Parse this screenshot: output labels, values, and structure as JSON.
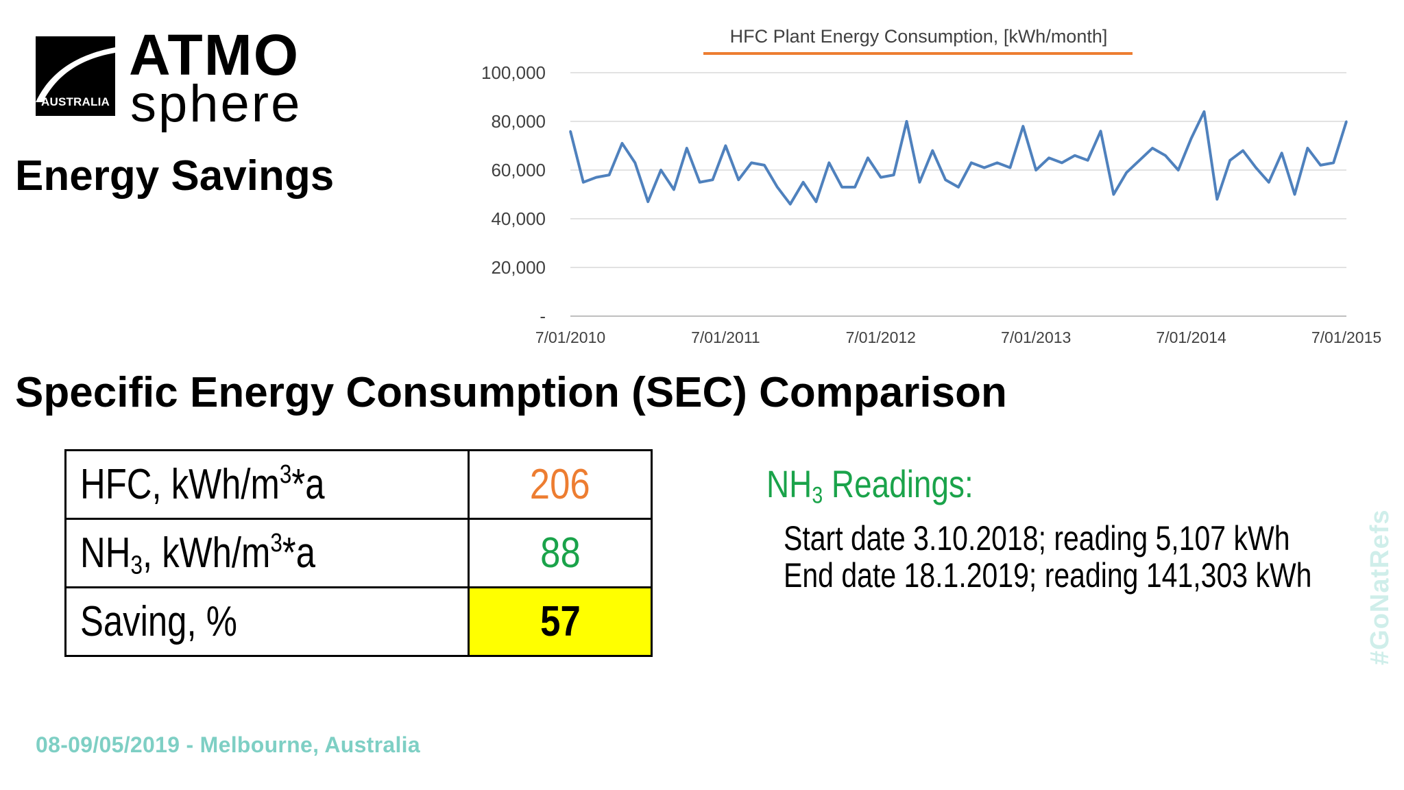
{
  "logo": {
    "top_text": "ATMO",
    "bottom_text": "sphere",
    "badge_text": "AUSTRALIA"
  },
  "headings": {
    "energy_savings": "Energy Savings",
    "sec_comparison": "Specific Energy Consumption (SEC) Comparison"
  },
  "chart_data": {
    "type": "line",
    "title": "HFC Plant Energy Consumption, [kWh/month]",
    "xlabel": "",
    "ylabel": "",
    "ylim": [
      0,
      100000
    ],
    "y_ticks": [
      "-",
      "20,000",
      "40,000",
      "60,000",
      "80,000",
      "100,000"
    ],
    "x_tick_labels": [
      "7/01/2010",
      "7/01/2011",
      "7/01/2012",
      "7/01/2013",
      "7/01/2014",
      "7/01/2015"
    ],
    "x_start": "7/01/2010",
    "x_end": "7/01/2015",
    "grid": true,
    "line_color": "#4f81bd",
    "title_underline_color": "#ed7d31",
    "values": [
      76000,
      55000,
      57000,
      58000,
      71000,
      63000,
      47000,
      60000,
      52000,
      69000,
      55000,
      56000,
      70000,
      56000,
      63000,
      62000,
      53000,
      46000,
      55000,
      47000,
      63000,
      53000,
      53000,
      65000,
      57000,
      58000,
      80000,
      55000,
      68000,
      56000,
      53000,
      63000,
      61000,
      63000,
      61000,
      78000,
      60000,
      65000,
      63000,
      66000,
      64000,
      76000,
      50000,
      59000,
      64000,
      69000,
      66000,
      60000,
      73000,
      84000,
      48000,
      64000,
      68000,
      61000,
      55000,
      67000,
      50000,
      69000,
      62000,
      63000,
      80000
    ]
  },
  "sec_table": {
    "rows": [
      {
        "label_main": "HFC, kWh/m",
        "label_sup": "3",
        "label_tail": "*a",
        "value": "206"
      },
      {
        "label_main": "NH",
        "label_sub": "3",
        "label_mid": ", kWh/m",
        "label_sup": "3",
        "label_tail": "*a",
        "value": "88"
      },
      {
        "label_main": "Saving, %",
        "value": "57"
      }
    ]
  },
  "nh3": {
    "title_main": "NH",
    "title_sub": "3",
    "title_tail": " Readings:",
    "start": "Start date 3.10.2018; reading 5,107 kWh",
    "end": "End date 18.1.2019; reading 141,303 kWh"
  },
  "footer": "08-09/05/2019 - Melbourne, Australia",
  "hashtag": "#GoNatRefs",
  "colors": {
    "orange": "#ed7d31",
    "green": "#1aa34a",
    "highlight": "#ffff00",
    "teal": "#7ecfc4"
  }
}
